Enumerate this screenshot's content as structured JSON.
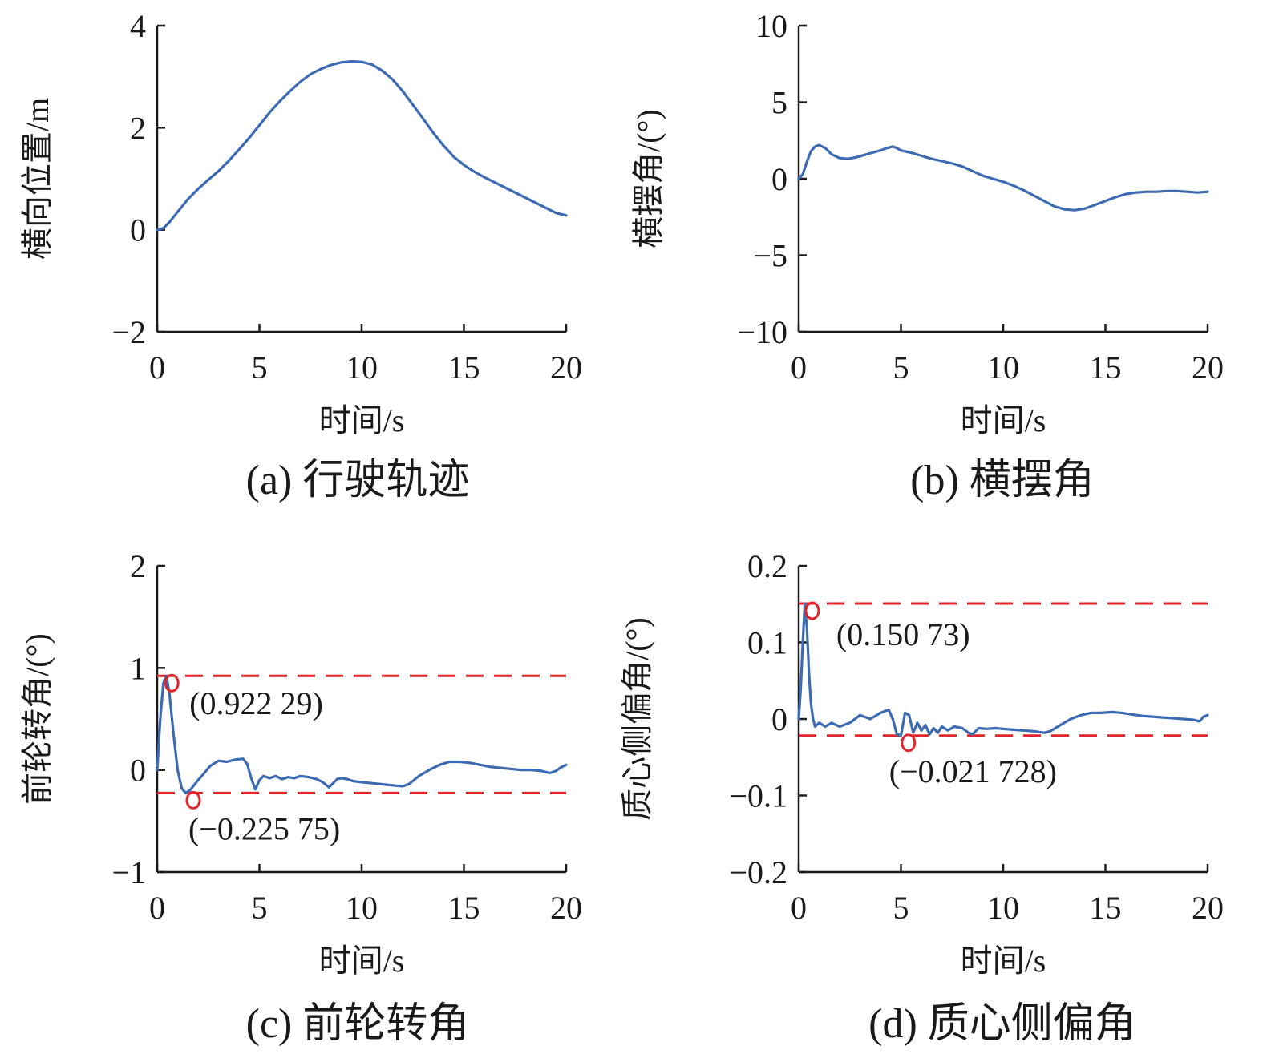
{
  "chart_data": [
    {
      "type": "line",
      "caption": "(a) 行驶轨迹",
      "xlabel": "时间/s",
      "ylabel": "横向位置/m",
      "xlim": [
        0,
        20
      ],
      "ylim": [
        -2,
        4
      ],
      "xticks": [
        0,
        5,
        10,
        15,
        20
      ],
      "xtick_labels": [
        "0",
        "5",
        "10",
        "15",
        "20"
      ],
      "yticks": [
        -2,
        0,
        2,
        4
      ],
      "ytick_labels": [
        "−2",
        "0",
        "2",
        "4"
      ],
      "grid": false,
      "series": [
        {
          "color": "#3d6bb3",
          "x": [
            0,
            0.3,
            0.6,
            1,
            1.5,
            2,
            2.5,
            3,
            3.5,
            4,
            4.5,
            5,
            5.5,
            6,
            6.5,
            7,
            7.5,
            8,
            8.5,
            9,
            9.5,
            10,
            10.5,
            11,
            11.5,
            12,
            12.5,
            13,
            13.5,
            14,
            14.5,
            15,
            15.5,
            16,
            16.5,
            17,
            17.5,
            18,
            18.5,
            19,
            19.5,
            20
          ],
          "y": [
            0,
            0.03,
            0.15,
            0.35,
            0.6,
            0.8,
            0.98,
            1.15,
            1.35,
            1.57,
            1.8,
            2.05,
            2.3,
            2.52,
            2.72,
            2.9,
            3.05,
            3.15,
            3.23,
            3.28,
            3.3,
            3.29,
            3.24,
            3.12,
            2.95,
            2.72,
            2.45,
            2.18,
            1.9,
            1.65,
            1.43,
            1.27,
            1.14,
            1.03,
            0.93,
            0.83,
            0.73,
            0.63,
            0.53,
            0.43,
            0.33,
            0.28
          ]
        }
      ],
      "annotations": []
    },
    {
      "type": "line",
      "caption": "(b) 横摆角",
      "xlabel": "时间/s",
      "ylabel": "横摆角/(°)",
      "xlim": [
        0,
        20
      ],
      "ylim": [
        -10,
        10
      ],
      "xticks": [
        0,
        5,
        10,
        15,
        20
      ],
      "xtick_labels": [
        "0",
        "5",
        "10",
        "15",
        "20"
      ],
      "yticks": [
        -10,
        -5,
        0,
        5,
        10
      ],
      "ytick_labels": [
        "−10",
        "−5",
        "0",
        "5",
        "10"
      ],
      "grid": false,
      "series": [
        {
          "color": "#3d6bb3",
          "x": [
            0,
            0.2,
            0.4,
            0.6,
            0.8,
            1,
            1.3,
            1.6,
            2,
            2.4,
            2.8,
            3.2,
            3.6,
            4,
            4.3,
            4.6,
            4.8,
            5,
            5.5,
            6,
            6.5,
            7,
            7.5,
            8,
            8.5,
            9,
            9.5,
            10,
            10.5,
            11,
            11.5,
            12,
            12.5,
            13,
            13.5,
            14,
            14.5,
            15,
            15.5,
            16,
            16.5,
            17,
            17.5,
            18,
            18.5,
            19,
            19.5,
            20
          ],
          "y": [
            0,
            0.3,
            1.1,
            1.8,
            2.1,
            2.2,
            2.0,
            1.6,
            1.35,
            1.3,
            1.4,
            1.55,
            1.7,
            1.85,
            2.0,
            2.1,
            2.0,
            1.85,
            1.7,
            1.5,
            1.3,
            1.15,
            1.0,
            0.8,
            0.5,
            0.2,
            0.0,
            -0.2,
            -0.45,
            -0.75,
            -1.1,
            -1.45,
            -1.8,
            -2.0,
            -2.05,
            -1.95,
            -1.7,
            -1.45,
            -1.2,
            -1.0,
            -0.9,
            -0.85,
            -0.85,
            -0.8,
            -0.8,
            -0.85,
            -0.9,
            -0.85
          ]
        }
      ],
      "annotations": []
    },
    {
      "type": "line",
      "caption": "(c) 前轮转角",
      "xlabel": "时间/s",
      "ylabel": "前轮转角/(°)",
      "xlim": [
        0,
        20
      ],
      "ylim": [
        -1,
        2
      ],
      "xticks": [
        0,
        5,
        10,
        15,
        20
      ],
      "xtick_labels": [
        "0",
        "5",
        "10",
        "15",
        "20"
      ],
      "yticks": [
        -1,
        0,
        1,
        2
      ],
      "ytick_labels": [
        "−1",
        "0",
        "1",
        "2"
      ],
      "grid": false,
      "series": [
        {
          "color": "#3d6bb3",
          "x": [
            0,
            0.15,
            0.3,
            0.45,
            0.6,
            0.8,
            1.0,
            1.2,
            1.4,
            1.6,
            1.8,
            2.0,
            2.3,
            2.6,
            3.0,
            3.4,
            3.8,
            4.2,
            4.4,
            4.6,
            4.8,
            5.0,
            5.2,
            5.5,
            5.8,
            6.1,
            6.4,
            6.7,
            7.0,
            7.4,
            7.8,
            8.1,
            8.4,
            8.6,
            8.8,
            9.0,
            9.3,
            9.6,
            10,
            10.5,
            11,
            11.5,
            12,
            12.3,
            12.8,
            13.3,
            13.8,
            14.3,
            14.8,
            15.3,
            15.8,
            16.3,
            16.8,
            17.3,
            17.8,
            18.3,
            18.8,
            19.2,
            19.5,
            19.7,
            20
          ],
          "y": [
            0,
            0.5,
            0.85,
            0.92,
            0.75,
            0.35,
            0.0,
            -0.18,
            -0.2257,
            -0.2,
            -0.15,
            -0.1,
            -0.03,
            0.04,
            0.09,
            0.08,
            0.1,
            0.11,
            0.06,
            -0.08,
            -0.19,
            -0.1,
            -0.06,
            -0.08,
            -0.06,
            -0.09,
            -0.07,
            -0.08,
            -0.06,
            -0.07,
            -0.09,
            -0.12,
            -0.17,
            -0.13,
            -0.09,
            -0.08,
            -0.09,
            -0.11,
            -0.12,
            -0.13,
            -0.14,
            -0.15,
            -0.16,
            -0.14,
            -0.06,
            0.0,
            0.05,
            0.08,
            0.08,
            0.07,
            0.05,
            0.03,
            0.02,
            0.01,
            0.0,
            0.0,
            -0.01,
            -0.03,
            -0.01,
            0.02,
            0.05
          ]
        }
      ],
      "ref_lines": [
        0.92229,
        -0.22575
      ],
      "annotations": [
        {
          "x": 0.4,
          "y": 0.92229,
          "text": "(0.922 29)"
        },
        {
          "x": 1.45,
          "y": -0.22575,
          "text": "(−0.225 75)"
        }
      ]
    },
    {
      "type": "line",
      "caption": "(d) 质心侧偏角",
      "xlabel": "时间/s",
      "ylabel": "质心侧偏角/(°)",
      "xlim": [
        0,
        20
      ],
      "ylim": [
        -0.2,
        0.2
      ],
      "xticks": [
        0,
        5,
        10,
        15,
        20
      ],
      "xtick_labels": [
        "0",
        "5",
        "10",
        "15",
        "20"
      ],
      "yticks": [
        -0.2,
        -0.1,
        0,
        0.1,
        0.2
      ],
      "ytick_labels": [
        "−0.2",
        "−0.1",
        "0",
        "0.1",
        "0.2"
      ],
      "grid": false,
      "series": [
        {
          "color": "#3d6bb3",
          "x": [
            0,
            0.1,
            0.2,
            0.3,
            0.4,
            0.5,
            0.6,
            0.7,
            0.8,
            1.0,
            1.3,
            1.6,
            2.0,
            2.5,
            3.0,
            3.5,
            4.0,
            4.4,
            4.6,
            4.8,
            5.0,
            5.2,
            5.4,
            5.6,
            5.8,
            6.0,
            6.2,
            6.4,
            6.6,
            6.8,
            7.0,
            7.3,
            7.6,
            8.0,
            8.3,
            8.5,
            8.8,
            9.2,
            9.6,
            10,
            10.5,
            11,
            11.5,
            12,
            12.3,
            12.8,
            13.3,
            13.8,
            14.3,
            14.8,
            15.3,
            15.8,
            16.3,
            16.8,
            17.3,
            17.8,
            18.3,
            18.8,
            19.3,
            19.6,
            19.8,
            20
          ],
          "y": [
            0,
            0.04,
            0.1,
            0.1507,
            0.12,
            0.06,
            0.02,
            0.0,
            -0.01,
            -0.005,
            -0.01,
            -0.005,
            -0.01,
            -0.005,
            0.005,
            0.0,
            0.008,
            0.012,
            0.0,
            -0.02,
            -0.0217,
            0.008,
            0.005,
            -0.018,
            -0.005,
            -0.015,
            -0.008,
            -0.02,
            -0.012,
            -0.018,
            -0.01,
            -0.015,
            -0.01,
            -0.012,
            -0.018,
            -0.02,
            -0.012,
            -0.013,
            -0.012,
            -0.013,
            -0.014,
            -0.015,
            -0.016,
            -0.018,
            -0.016,
            -0.008,
            0.0,
            0.005,
            0.008,
            0.008,
            0.009,
            0.008,
            0.006,
            0.004,
            0.003,
            0.002,
            0.001,
            0.0,
            -0.001,
            -0.003,
            0.003,
            0.005
          ]
        }
      ],
      "ref_lines": [
        0.15073,
        -0.021728
      ],
      "annotations": [
        {
          "x": 0.35,
          "y": 0.15073,
          "text": "(0.150 73)"
        },
        {
          "x": 5.05,
          "y": -0.021728,
          "text": "(−0.021 728)"
        }
      ]
    }
  ]
}
